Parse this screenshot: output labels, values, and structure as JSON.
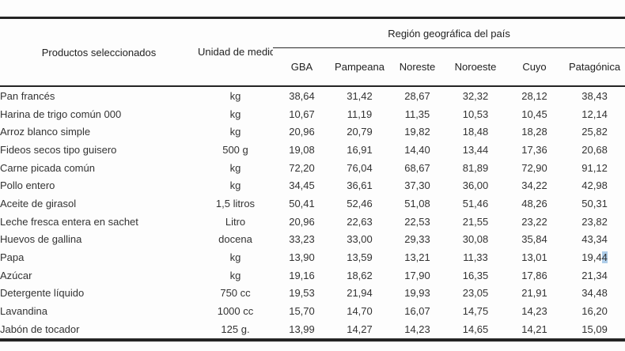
{
  "table": {
    "col_product": "Productos seleccionados",
    "col_unit": "Unidad de medida",
    "region_group": "Región geográfica del país",
    "regions": [
      "GBA",
      "Pampeana",
      "Noreste",
      "Noroeste",
      "Cuyo",
      "Patagónica"
    ],
    "rows": [
      {
        "product": "Pan francés",
        "unit": "kg",
        "values": [
          "38,64",
          "31,42",
          "28,67",
          "32,32",
          "28,12",
          "38,43"
        ]
      },
      {
        "product": "Harina de trigo común 000",
        "unit": "kg",
        "values": [
          "10,67",
          "11,19",
          "11,35",
          "10,53",
          "10,45",
          "12,14"
        ]
      },
      {
        "product": "Arroz blanco simple",
        "unit": "kg",
        "values": [
          "20,96",
          "20,79",
          "19,82",
          "18,48",
          "18,28",
          "25,82"
        ]
      },
      {
        "product": "Fideos secos tipo guisero",
        "unit": "500 g",
        "values": [
          "19,08",
          "16,91",
          "14,40",
          "13,44",
          "17,36",
          "20,68"
        ]
      },
      {
        "product": "Carne picada común",
        "unit": "kg",
        "values": [
          "72,20",
          "76,04",
          "68,67",
          "81,89",
          "72,90",
          "91,12"
        ]
      },
      {
        "product": "Pollo entero",
        "unit": "kg",
        "values": [
          "34,45",
          "36,61",
          "37,30",
          "36,00",
          "34,22",
          "42,98"
        ]
      },
      {
        "product": "Aceite de girasol",
        "unit": "1,5 litros",
        "values": [
          "50,41",
          "52,46",
          "51,08",
          "51,46",
          "48,26",
          "50,31"
        ]
      },
      {
        "product": "Leche fresca entera en sachet",
        "unit": "Litro",
        "values": [
          "20,96",
          "22,63",
          "22,53",
          "21,55",
          "23,22",
          "23,82"
        ]
      },
      {
        "product": "Huevos de gallina",
        "unit": "docena",
        "values": [
          "33,23",
          "33,00",
          "29,33",
          "30,08",
          "35,84",
          "43,34"
        ]
      },
      {
        "product": "Papa",
        "unit": "kg",
        "values": [
          "13,90",
          "13,59",
          "13,21",
          "11,33",
          "13,01",
          "19,44"
        ]
      },
      {
        "product": "Azúcar",
        "unit": "kg",
        "values": [
          "19,16",
          "18,62",
          "17,90",
          "16,35",
          "17,86",
          "21,34"
        ]
      },
      {
        "product": "Detergente líquido",
        "unit": "750 cc",
        "values": [
          "19,53",
          "21,94",
          "19,93",
          "23,05",
          "21,91",
          "34,48"
        ]
      },
      {
        "product": "Lavandina",
        "unit": "1000 cc",
        "values": [
          "15,70",
          "14,70",
          "16,07",
          "14,75",
          "14,23",
          "16,20"
        ]
      },
      {
        "product": "Jabón de tocador",
        "unit": "125 g.",
        "values": [
          "13,99",
          "14,27",
          "14,23",
          "14,65",
          "14,21",
          "15,09"
        ]
      }
    ],
    "selection": {
      "row_index": 9,
      "col_index": 5,
      "selected_text": "4",
      "highlight_color": "#aecde9"
    }
  },
  "colors": {
    "text": "#333333",
    "heading": "#222222",
    "border": "#242424",
    "background": "#fdfdfd",
    "selection_highlight": "#aecde9"
  }
}
